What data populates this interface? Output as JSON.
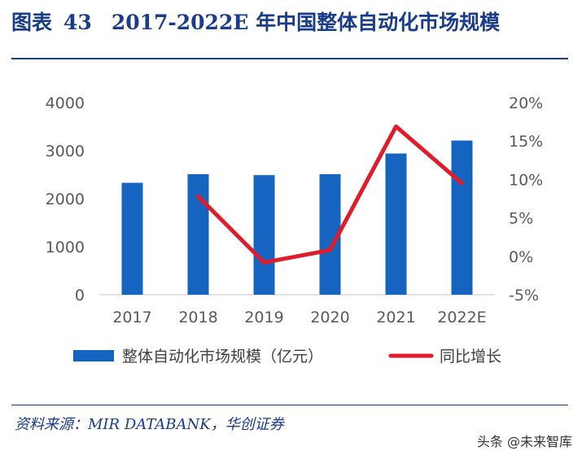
{
  "figure": {
    "label": "图表",
    "number": "43",
    "title": "2017-2022E 年中国整体自动化市场规模"
  },
  "source": "资料来源：MIR DATABANK，华创证券",
  "watermark": "头条 @未来智库",
  "colors": {
    "header": "#1a3c8c",
    "bar": "#1565c0",
    "line": "#e01b2a",
    "text": "#595959",
    "axis": "#d9d9d9"
  },
  "chart_data": {
    "type": "bar",
    "categories": [
      "2017",
      "2018",
      "2019",
      "2020",
      "2021",
      "2022E"
    ],
    "series": [
      {
        "name": "整体自动化市场规模（亿元）",
        "type": "bar",
        "axis": "left",
        "values": [
          2330,
          2510,
          2490,
          2510,
          2940,
          3210
        ]
      },
      {
        "name": "同比增长",
        "type": "line",
        "axis": "right",
        "values": [
          null,
          7.8,
          -0.8,
          0.8,
          16.9,
          9.5
        ]
      }
    ],
    "yleft": {
      "min": 0,
      "max": 4000,
      "ticks": [
        "0",
        "1000",
        "2000",
        "3000",
        "4000"
      ]
    },
    "yright": {
      "min": -5,
      "max": 20,
      "ticks": [
        "-5%",
        "0%",
        "5%",
        "10%",
        "15%",
        "20%"
      ]
    },
    "legend_position": "bottom",
    "grid": false
  }
}
